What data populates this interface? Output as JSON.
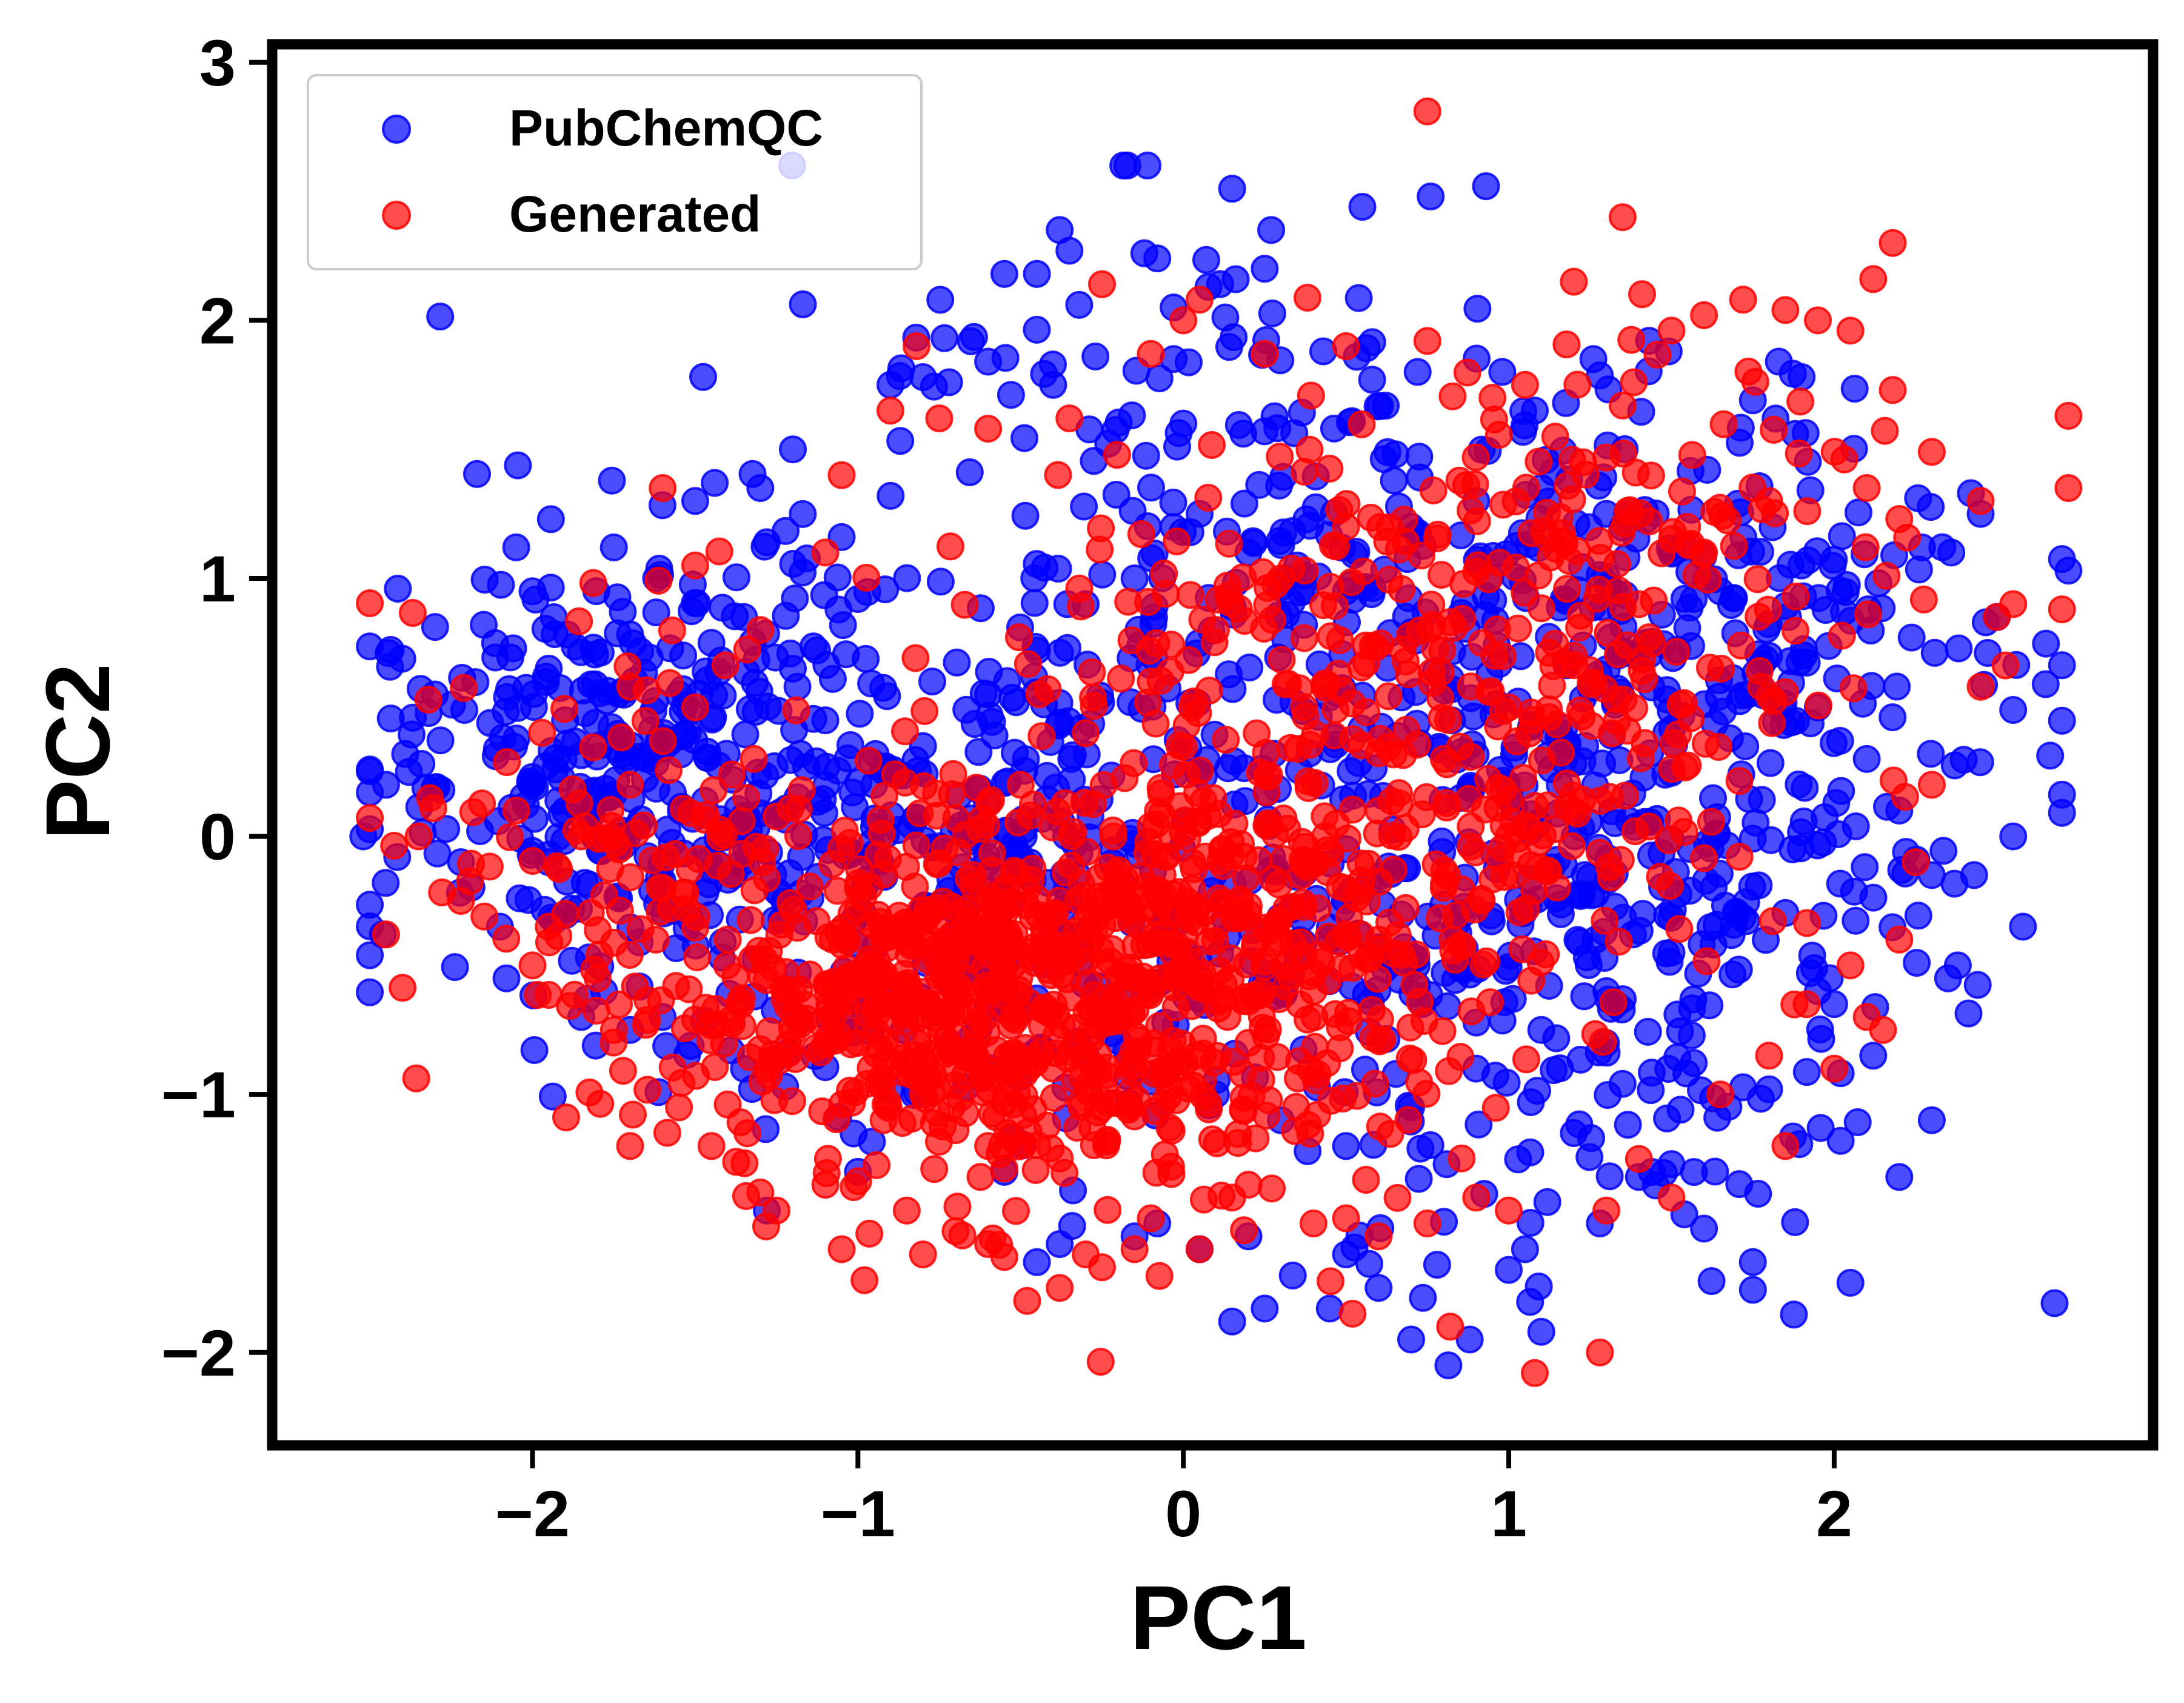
{
  "chart_data": {
    "type": "scatter",
    "title": "",
    "xlabel": "PC1",
    "ylabel": "PC2",
    "xlim": [
      -2.8,
      2.98
    ],
    "ylim": [
      -2.36,
      3.07
    ],
    "xticks": [
      -2,
      -1,
      0,
      1,
      2
    ],
    "xtick_labels": [
      "−2",
      "−1",
      "0",
      "1",
      "2"
    ],
    "yticks": [
      -2,
      -1,
      0,
      1,
      2,
      3
    ],
    "ytick_labels": [
      "−2",
      "−1",
      "0",
      "1",
      "2",
      "3"
    ],
    "grid": false,
    "legend_position": "top-left",
    "series": [
      {
        "name": "PubChemQC",
        "color": "#0000ff",
        "opacity": 0.7,
        "n_points": 1600,
        "points": [
          [
            -2.52,
            0.0
          ],
          [
            -2.45,
            0.2
          ],
          [
            -2.46,
            -0.38
          ],
          [
            -2.38,
            0.25
          ],
          [
            -2.3,
            0.55
          ],
          [
            -2.28,
            0.18
          ],
          [
            -2.22,
            -0.1
          ],
          [
            -2.15,
            0.82
          ],
          [
            -2.05,
            1.12
          ],
          [
            -2.0,
            0.95
          ],
          [
            -2.1,
            -0.35
          ],
          [
            -2.08,
            -0.55
          ],
          [
            -1.95,
            0.65
          ],
          [
            -1.9,
            0.45
          ],
          [
            -1.85,
            -0.7
          ],
          [
            -1.75,
            1.12
          ],
          [
            -1.62,
            1.0
          ],
          [
            -1.5,
            1.3
          ],
          [
            -1.44,
            1.37
          ],
          [
            -1.3,
            1.35
          ],
          [
            -1.28,
            1.14
          ],
          [
            -1.2,
            1.5
          ],
          [
            -1.05,
            1.16
          ],
          [
            -1.0,
            0.92
          ],
          [
            -0.9,
            1.75
          ],
          [
            -0.8,
            1.78
          ],
          [
            -0.72,
            1.76
          ],
          [
            -0.6,
            1.84
          ],
          [
            -0.55,
            2.18
          ],
          [
            -0.45,
            2.18
          ],
          [
            -0.38,
            2.35
          ],
          [
            -0.35,
            2.27
          ],
          [
            -0.32,
            2.06
          ],
          [
            -0.4,
            1.75
          ],
          [
            -0.27,
            1.86
          ],
          [
            -0.12,
            2.26
          ],
          [
            -0.08,
            2.24
          ],
          [
            -0.03,
            2.05
          ],
          [
            -0.03,
            1.85
          ],
          [
            0.0,
            1.6
          ],
          [
            0.15,
            2.51
          ],
          [
            0.25,
            2.2
          ],
          [
            0.27,
            2.35
          ],
          [
            0.43,
            1.88
          ],
          [
            0.58,
            1.77
          ],
          [
            0.55,
            2.44
          ],
          [
            0.76,
            2.48
          ],
          [
            0.93,
            2.52
          ],
          [
            0.72,
            1.8
          ],
          [
            0.98,
            1.8
          ],
          [
            1.08,
            1.65
          ],
          [
            1.26,
            1.85
          ],
          [
            1.83,
            1.84
          ],
          [
            1.9,
            1.78
          ],
          [
            1.88,
            1.56
          ],
          [
            1.75,
            1.69
          ],
          [
            1.92,
            1.07
          ],
          [
            2.03,
            0.87
          ],
          [
            2.27,
            1.12
          ],
          [
            2.36,
            1.1
          ],
          [
            2.42,
            1.33
          ],
          [
            2.45,
            1.25
          ],
          [
            2.5,
            0.85
          ],
          [
            2.55,
            0.49
          ],
          [
            2.65,
            0.59
          ],
          [
            2.72,
            1.03
          ],
          [
            2.58,
            -0.35
          ],
          [
            2.55,
            0.0
          ],
          [
            2.43,
            -0.15
          ],
          [
            2.38,
            -0.5
          ],
          [
            2.35,
            -0.55
          ],
          [
            2.3,
            -1.1
          ],
          [
            2.2,
            -1.32
          ],
          [
            2.12,
            -0.85
          ],
          [
            2.0,
            -0.65
          ],
          [
            2.02,
            -1.18
          ],
          [
            2.05,
            -1.73
          ],
          [
            1.95,
            -0.6
          ],
          [
            1.8,
            -0.98
          ],
          [
            1.75,
            -1.65
          ],
          [
            1.6,
            -1.52
          ],
          [
            1.5,
            -1.27
          ],
          [
            1.4,
            -1.32
          ],
          [
            1.28,
            -1.5
          ],
          [
            1.2,
            -1.15
          ],
          [
            1.05,
            -1.6
          ],
          [
            1.0,
            -1.68
          ],
          [
            1.1,
            -1.92
          ],
          [
            0.88,
            -1.95
          ],
          [
            0.78,
            -1.66
          ],
          [
            0.7,
            -1.95
          ],
          [
            0.6,
            -1.75
          ],
          [
            0.45,
            -1.83
          ],
          [
            0.5,
            -1.62
          ],
          [
            0.2,
            -1.55
          ],
          [
            0.15,
            -1.88
          ],
          [
            0.25,
            -1.83
          ],
          [
            0.05,
            -1.6
          ],
          [
            -0.08,
            -1.5
          ],
          [
            -0.15,
            -1.55
          ],
          [
            -0.38,
            -1.58
          ],
          [
            -0.45,
            -1.65
          ],
          [
            -0.55,
            -1.3
          ],
          [
            -1.28,
            -1.45
          ],
          [
            -1.0,
            -1.3
          ],
          [
            -1.35,
            -0.9
          ],
          [
            -1.6,
            -0.7
          ],
          [
            -1.7,
            -0.75
          ],
          [
            -1.78,
            -0.6
          ],
          [
            -1.95,
            -0.1
          ],
          [
            -2.0,
            0.2
          ],
          [
            -1.9,
            0.1
          ],
          [
            -1.65,
            0.3
          ],
          [
            -1.55,
            0.55
          ],
          [
            -1.45,
            0.75
          ],
          [
            -1.35,
            0.85
          ],
          [
            -1.2,
            0.65
          ],
          [
            -1.1,
            0.45
          ],
          [
            -0.95,
            0.2
          ],
          [
            -0.8,
            0.35
          ],
          [
            -0.6,
            0.55
          ],
          [
            -0.45,
            0.72
          ],
          [
            -0.3,
            0.9
          ],
          [
            -0.15,
            1.0
          ],
          [
            0.05,
            1.25
          ],
          [
            0.2,
            1.1
          ],
          [
            0.35,
            1.05
          ],
          [
            0.5,
            0.95
          ],
          [
            0.7,
            1.2
          ],
          [
            0.9,
            1.3
          ],
          [
            1.1,
            1.35
          ],
          [
            1.3,
            1.25
          ],
          [
            1.5,
            1.1
          ],
          [
            1.65,
            0.95
          ],
          [
            1.8,
            0.7
          ],
          [
            1.95,
            0.5
          ],
          [
            2.1,
            0.3
          ],
          [
            2.2,
            0.1
          ],
          [
            2.3,
            -0.15
          ],
          [
            1.7,
            -0.3
          ],
          [
            1.5,
            -0.45
          ],
          [
            1.3,
            -0.6
          ],
          [
            1.1,
            -0.75
          ],
          [
            0.9,
            -0.9
          ],
          [
            0.7,
            -1.05
          ],
          [
            0.5,
            -1.2
          ],
          [
            0.3,
            -1.1
          ],
          [
            0.1,
            -1.0
          ],
          [
            -0.1,
            -0.95
          ],
          [
            -0.3,
            -0.85
          ]
        ]
      },
      {
        "name": "Generated",
        "color": "#ff0000",
        "opacity": 0.7,
        "n_points": 1600,
        "points": [
          [
            -2.45,
            -0.38
          ],
          [
            -2.35,
            0.0
          ],
          [
            -2.32,
            0.53
          ],
          [
            -2.22,
            -0.25
          ],
          [
            -2.05,
            0.1
          ],
          [
            -2.0,
            -0.5
          ],
          [
            -1.95,
            -0.35
          ],
          [
            -1.8,
            -0.55
          ],
          [
            -1.75,
            -0.75
          ],
          [
            -1.7,
            0.58
          ],
          [
            -1.6,
            1.35
          ],
          [
            -1.5,
            1.05
          ],
          [
            -1.55,
            -1.05
          ],
          [
            -1.45,
            -1.2
          ],
          [
            -1.7,
            -1.2
          ],
          [
            -1.3,
            -1.38
          ],
          [
            -1.25,
            -1.45
          ],
          [
            -1.1,
            -1.35
          ],
          [
            -1.05,
            -1.6
          ],
          [
            -0.98,
            -1.72
          ],
          [
            -0.85,
            -1.45
          ],
          [
            -0.8,
            -1.62
          ],
          [
            -0.7,
            -1.53
          ],
          [
            -0.6,
            -1.58
          ],
          [
            -0.55,
            -1.63
          ],
          [
            -0.48,
            -1.8
          ],
          [
            -0.38,
            -1.75
          ],
          [
            -0.3,
            -1.62
          ],
          [
            -0.25,
            -1.67
          ],
          [
            -0.15,
            -1.6
          ],
          [
            -0.1,
            -1.48
          ],
          [
            0.05,
            -1.6
          ],
          [
            0.15,
            -1.4
          ],
          [
            0.2,
            -1.35
          ],
          [
            0.4,
            -1.5
          ],
          [
            0.5,
            -1.48
          ],
          [
            0.52,
            -1.85
          ],
          [
            0.6,
            -1.55
          ],
          [
            0.75,
            -1.5
          ],
          [
            0.82,
            -1.9
          ],
          [
            0.9,
            -1.4
          ],
          [
            1.0,
            -1.45
          ],
          [
            1.08,
            -2.08
          ],
          [
            1.28,
            -2.0
          ],
          [
            1.3,
            -1.45
          ],
          [
            1.4,
            -1.25
          ],
          [
            1.5,
            -1.4
          ],
          [
            1.65,
            -1.0
          ],
          [
            1.8,
            -0.85
          ],
          [
            1.85,
            -1.2
          ],
          [
            2.0,
            -0.9
          ],
          [
            2.05,
            -0.5
          ],
          [
            2.1,
            -0.7
          ],
          [
            2.15,
            -0.75
          ],
          [
            2.2,
            -0.4
          ],
          [
            2.25,
            -0.1
          ],
          [
            2.3,
            0.2
          ],
          [
            2.45,
            0.58
          ],
          [
            2.5,
            0.85
          ],
          [
            2.55,
            0.9
          ],
          [
            2.7,
            0.88
          ],
          [
            2.72,
            1.35
          ],
          [
            2.72,
            1.63
          ],
          [
            2.45,
            1.3
          ],
          [
            2.3,
            1.49
          ],
          [
            2.2,
            1.23
          ],
          [
            2.1,
            1.35
          ],
          [
            2.18,
            1.73
          ],
          [
            2.05,
            1.96
          ],
          [
            2.12,
            2.16
          ],
          [
            2.18,
            2.3
          ],
          [
            1.95,
            2.0
          ],
          [
            1.85,
            2.04
          ],
          [
            1.72,
            2.08
          ],
          [
            1.6,
            2.02
          ],
          [
            1.5,
            1.96
          ],
          [
            1.35,
            1.67
          ],
          [
            1.35,
            2.4
          ],
          [
            1.2,
            2.15
          ],
          [
            1.05,
            1.75
          ],
          [
            0.95,
            1.7
          ],
          [
            0.75,
            1.92
          ],
          [
            0.75,
            2.81
          ],
          [
            0.5,
            1.9
          ],
          [
            0.25,
            1.87
          ],
          [
            0.05,
            2.08
          ],
          [
            0.0,
            2.0
          ],
          [
            -0.1,
            1.87
          ],
          [
            -0.25,
            2.14
          ],
          [
            -0.35,
            1.62
          ],
          [
            -0.6,
            1.58
          ],
          [
            -0.75,
            1.62
          ],
          [
            -0.82,
            1.9
          ],
          [
            -0.9,
            1.65
          ],
          [
            -1.05,
            1.4
          ],
          [
            -1.1,
            1.1
          ],
          [
            -1.3,
            0.8
          ],
          [
            -1.5,
            0.5
          ],
          [
            -1.7,
            0.2
          ],
          [
            -1.85,
            0.0
          ],
          [
            -1.9,
            -0.3
          ],
          [
            -1.6,
            -0.2
          ],
          [
            -1.4,
            -0.4
          ],
          [
            -1.2,
            -0.6
          ],
          [
            -1.0,
            -0.8
          ],
          [
            -0.8,
            -1.0
          ],
          [
            -0.6,
            -1.2
          ],
          [
            -0.4,
            -0.9
          ],
          [
            -0.2,
            -0.7
          ],
          [
            0.0,
            -0.5
          ],
          [
            0.2,
            -0.3
          ],
          [
            0.4,
            -0.1
          ],
          [
            0.6,
            0.1
          ],
          [
            0.8,
            0.3
          ],
          [
            1.0,
            0.5
          ],
          [
            1.2,
            0.7
          ],
          [
            1.4,
            0.9
          ],
          [
            1.6,
            1.1
          ],
          [
            1.8,
            1.3
          ],
          [
            -0.5,
            0.2
          ],
          [
            -0.3,
            0.4
          ],
          [
            -0.1,
            0.6
          ],
          [
            0.1,
            0.8
          ],
          [
            0.3,
            1.0
          ],
          [
            0.5,
            1.2
          ],
          [
            -1.0,
            -0.2
          ],
          [
            -0.8,
            -0.4
          ],
          [
            -0.6,
            -0.6
          ],
          [
            -0.4,
            -0.3
          ],
          [
            -0.2,
            -0.2
          ],
          [
            0.2,
            -0.8
          ],
          [
            0.4,
            -0.6
          ],
          [
            0.6,
            -0.4
          ],
          [
            0.8,
            -0.2
          ],
          [
            1.0,
            0.0
          ]
        ]
      }
    ]
  }
}
